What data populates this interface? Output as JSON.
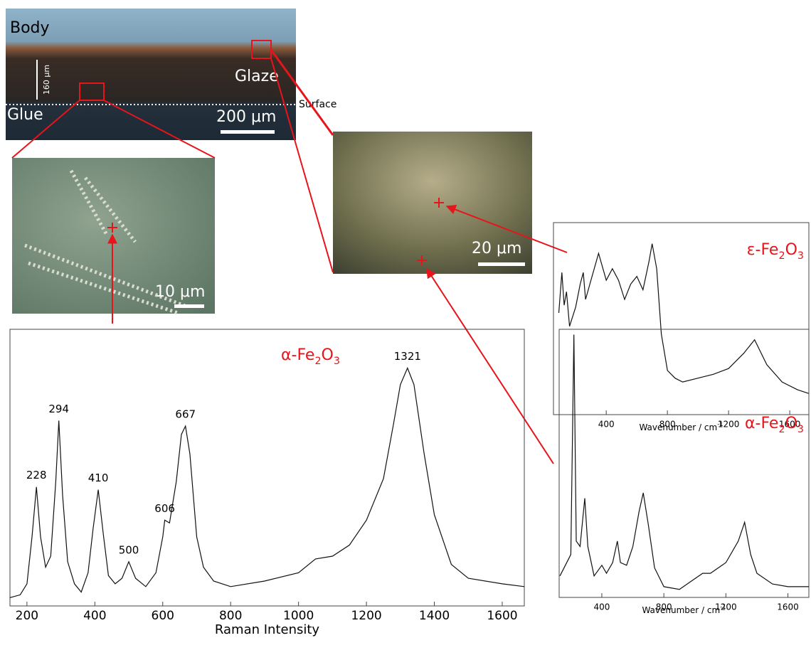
{
  "images": {
    "cross_section": {
      "body": "Body",
      "glaze": "Glaze",
      "glue": "Glue",
      "surface": "Surface",
      "thickness": "160 μm",
      "scale_bar": "200 μm"
    },
    "detail_left": {
      "scale_bar": "10 μm"
    },
    "detail_right": {
      "scale_bar": "20 μm"
    }
  },
  "chart_data": [
    {
      "type": "line",
      "title": [
        "α-Fe",
        "2",
        "O",
        "3"
      ],
      "xlabel": "Raman Intensity",
      "x": [
        150,
        180,
        200,
        215,
        228,
        240,
        255,
        270,
        285,
        294,
        305,
        320,
        340,
        360,
        380,
        395,
        410,
        425,
        440,
        460,
        480,
        500,
        520,
        550,
        580,
        600,
        606,
        620,
        640,
        655,
        667,
        680,
        700,
        720,
        750,
        800,
        900,
        1000,
        1050,
        1100,
        1150,
        1200,
        1250,
        1280,
        1300,
        1321,
        1340,
        1370,
        1400,
        1450,
        1500,
        1600,
        1665
      ],
      "values": [
        3,
        4,
        8,
        25,
        43,
        25,
        14,
        18,
        45,
        67,
        40,
        16,
        8,
        5,
        12,
        28,
        42,
        26,
        11,
        8,
        10,
        16,
        10,
        7,
        12,
        25,
        31,
        30,
        45,
        62,
        65,
        55,
        25,
        14,
        9,
        7,
        9,
        12,
        17,
        18,
        22,
        31,
        46,
        66,
        80,
        86,
        80,
        55,
        33,
        15,
        10,
        8,
        7
      ],
      "peaks": [
        228,
        294,
        410,
        500,
        606,
        667,
        1321
      ],
      "color": "#111111",
      "xlim": [
        150,
        1665
      ],
      "ylim": [
        0,
        100
      ],
      "xticks": [
        200,
        400,
        600,
        800,
        1000,
        1200,
        1400,
        1600
      ]
    },
    {
      "type": "line",
      "title": [
        "ε-Fe",
        "2",
        "O",
        "3"
      ],
      "xlabel": [
        "Wavenumber / cm",
        "-1"
      ],
      "x": [
        90,
        110,
        125,
        140,
        160,
        200,
        230,
        250,
        265,
        300,
        350,
        400,
        440,
        480,
        520,
        560,
        600,
        640,
        680,
        700,
        730,
        760,
        800,
        850,
        900,
        1000,
        1100,
        1200,
        1300,
        1370,
        1450,
        1550,
        1650,
        1725
      ],
      "values": [
        53,
        74,
        57,
        64,
        46,
        56,
        68,
        74,
        60,
        70,
        84,
        70,
        76,
        70,
        60,
        68,
        72,
        65,
        80,
        89,
        76,
        42,
        23,
        19,
        17,
        19,
        21,
        24,
        32,
        39,
        26,
        17,
        13,
        11
      ],
      "color": "#111111",
      "xlim": [
        55,
        1725
      ],
      "ylim": [
        0,
        100
      ],
      "xticks": [
        400,
        800,
        1200,
        1600
      ]
    },
    {
      "type": "line",
      "title": [
        "α-Fe",
        "2",
        "O",
        "3"
      ],
      "xlabel": [
        "Wavenumber / cm",
        "-1"
      ],
      "x": [
        130,
        200,
        220,
        235,
        260,
        290,
        310,
        350,
        400,
        430,
        470,
        500,
        520,
        560,
        600,
        640,
        667,
        700,
        740,
        800,
        900,
        1000,
        1050,
        1100,
        1200,
        1280,
        1321,
        1360,
        1400,
        1500,
        1600,
        1735
      ],
      "values": [
        8,
        16,
        98,
        21,
        19,
        37,
        19,
        8,
        12,
        9,
        13,
        21,
        13,
        12,
        19,
        32,
        39,
        27,
        11,
        4,
        3,
        7,
        9,
        9,
        13,
        21,
        28,
        16,
        9,
        5,
        4,
        4
      ],
      "color": "#111111",
      "xlim": [
        125,
        1735
      ],
      "ylim": [
        0,
        100
      ],
      "xticks": [
        400,
        800,
        1200,
        1600
      ]
    }
  ]
}
